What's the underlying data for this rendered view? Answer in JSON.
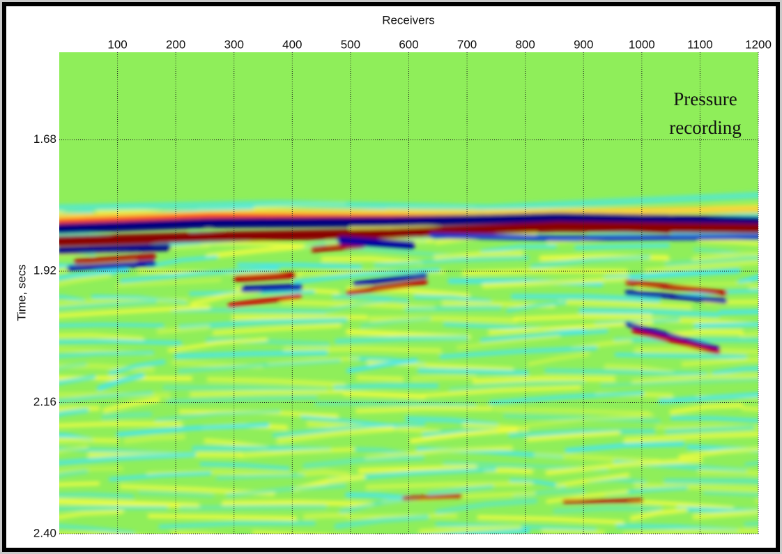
{
  "chart_data": {
    "type": "seismic-image",
    "title": "Receivers",
    "y_label": "Time, secs",
    "annotation": [
      "Pressure",
      "recording"
    ],
    "xlim": [
      0,
      1200
    ],
    "xticks": [
      100,
      200,
      300,
      400,
      500,
      600,
      700,
      800,
      900,
      1000,
      1100,
      1200
    ],
    "ylim": [
      1.52,
      2.4
    ],
    "yticks": [
      1.68,
      1.92,
      2.16,
      {
        "value": 2.4,
        "label": "2.40"
      }
    ],
    "y_reversed": true,
    "x_axis_position": "top",
    "grid": true,
    "background_color": "#8fee5a"
  }
}
